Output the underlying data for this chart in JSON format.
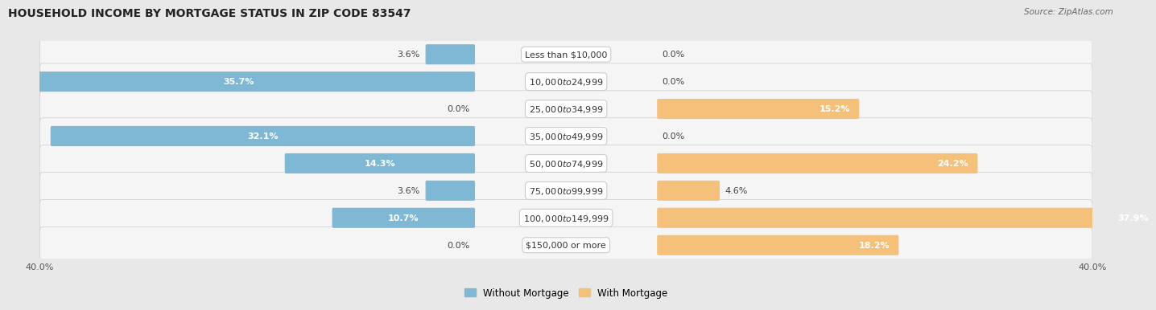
{
  "title": "HOUSEHOLD INCOME BY MORTGAGE STATUS IN ZIP CODE 83547",
  "source": "Source: ZipAtlas.com",
  "categories": [
    "Less than $10,000",
    "$10,000 to $24,999",
    "$25,000 to $34,999",
    "$35,000 to $49,999",
    "$50,000 to $74,999",
    "$75,000 to $99,999",
    "$100,000 to $149,999",
    "$150,000 or more"
  ],
  "without_mortgage": [
    3.6,
    35.7,
    0.0,
    32.1,
    14.3,
    3.6,
    10.7,
    0.0
  ],
  "with_mortgage": [
    0.0,
    0.0,
    15.2,
    0.0,
    24.2,
    4.6,
    37.9,
    18.2
  ],
  "max_val": 40.0,
  "color_without": "#7EB8D4",
  "color_with": "#F5C07A",
  "bg_color": "#e8e8e8",
  "row_bg_light": "#f2f2f2",
  "row_bg_dark": "#e0e0e0",
  "title_fontsize": 10,
  "label_fontsize": 8,
  "cat_fontsize": 8,
  "axis_label_fontsize": 8,
  "legend_fontsize": 8.5
}
